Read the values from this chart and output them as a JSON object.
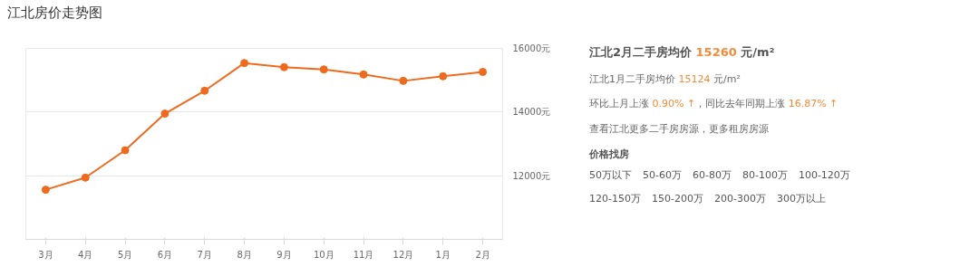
{
  "chart_data": {
    "type": "line",
    "title": "江北房价走势图",
    "categories": [
      "3月",
      "4月",
      "5月",
      "6月",
      "7月",
      "8月",
      "9月",
      "10月",
      "11月",
      "12月",
      "1月",
      "2月"
    ],
    "series": [
      {
        "color": "#ee6a1e",
        "values": [
          11560,
          11940,
          12800,
          13950,
          14670,
          15540,
          15410,
          15340,
          15180,
          14980,
          15124,
          15260
        ]
      }
    ],
    "ylim": [
      10000,
      16000
    ],
    "yticks": [
      {
        "value": 12000,
        "label": "12000元"
      },
      {
        "value": 14000,
        "label": "14000元"
      },
      {
        "value": 16000,
        "label": "16000元"
      }
    ],
    "grid": "y",
    "marker": "circle",
    "line_style": "solid",
    "annotations": [
      "江北2月二手房均价 15260 元/m²",
      "江北1月二手房均价 15124 元/m²",
      "环比上月上涨 0.90% ↑，同比去年同期上涨 16.87% ↑",
      "查看江北更多二手房房源，更多租房房源",
      "价格找房",
      "50万以下",
      "50-60万",
      "60-80万",
      "80-100万",
      "100-120万",
      "120-150万",
      "150-200万",
      "200-300万",
      "300万以上"
    ]
  }
}
